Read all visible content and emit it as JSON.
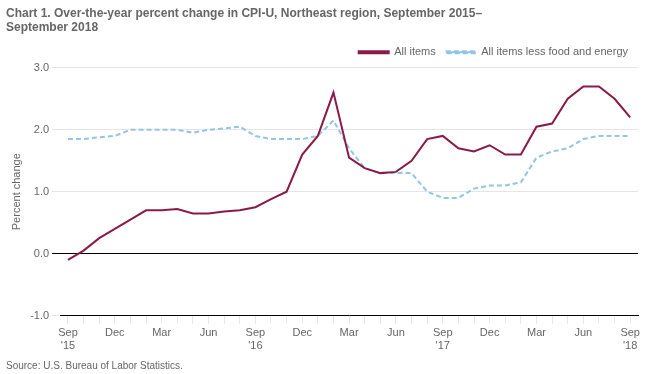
{
  "chart_data": {
    "type": "line",
    "title": "Chart 1. Over-the-year percent change in CPI-U, Northeast region, September 2015–\nSeptember 2018",
    "y_label": "Percent change",
    "annotations": [
      "Source: U.S. Bureau of Labor Statistics."
    ],
    "categories": [
      "Sep\n'15",
      null,
      null,
      "Dec",
      null,
      null,
      "Mar",
      null,
      null,
      "Jun",
      null,
      null,
      "Sep\n'16",
      null,
      null,
      "Dec",
      null,
      null,
      "Mar",
      null,
      null,
      "Jun",
      null,
      null,
      "Sep\n'17",
      null,
      null,
      "Dec",
      null,
      null,
      "Mar",
      null,
      null,
      "Jun",
      null,
      null,
      "Sep\n'18"
    ],
    "series": [
      {
        "name": "All items",
        "color": "#8B1A4A",
        "line_style": "solid",
        "values": [
          -0.1,
          0.05,
          0.25,
          0.4,
          0.55,
          0.7,
          0.7,
          0.72,
          0.65,
          0.65,
          0.68,
          0.7,
          0.75,
          0.88,
          1.0,
          1.6,
          1.9,
          2.6,
          1.55,
          1.38,
          1.3,
          1.32,
          1.5,
          1.85,
          1.9,
          1.7,
          1.65,
          1.75,
          1.6,
          1.6,
          2.05,
          2.1,
          2.5,
          2.7,
          2.7,
          2.5,
          2.2
        ]
      },
      {
        "name": "All items less food and energy",
        "color": "#92C5E8",
        "line_style": "dashed",
        "values": [
          1.85,
          1.85,
          1.88,
          1.9,
          2.0,
          2.0,
          2.0,
          2.0,
          1.95,
          2.0,
          2.02,
          2.05,
          1.9,
          1.85,
          1.85,
          1.85,
          1.9,
          2.15,
          1.7,
          1.38,
          1.3,
          1.3,
          1.3,
          1.0,
          0.9,
          0.9,
          1.05,
          1.1,
          1.1,
          1.15,
          1.55,
          1.65,
          1.7,
          1.85,
          1.9,
          1.9,
          1.9
        ]
      }
    ],
    "ylim": [
      -1.0,
      3.0
    ],
    "yticks": [
      {
        "value": -1.0,
        "label": "-1.0"
      },
      {
        "value": 0.0,
        "label": "0.0"
      },
      {
        "value": 1.0,
        "label": "1.0"
      },
      {
        "value": 2.0,
        "label": "2.0"
      },
      {
        "value": 3.0,
        "label": "3.0"
      }
    ],
    "grid": true,
    "legend": "upper right"
  }
}
